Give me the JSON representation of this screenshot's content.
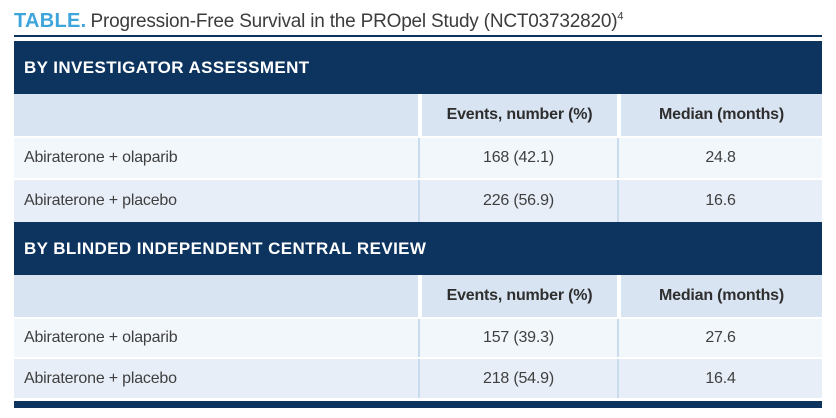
{
  "title": {
    "label": "TABLE.",
    "text": "Progression-Free Survival in the PROpel Study (NCT03732820)",
    "reference": "4"
  },
  "colors": {
    "navy": "#0d345f",
    "accent_blue": "#3da5dc",
    "column_header_bg": "#d9e4f2",
    "row_light": "#f2f7fc",
    "row_shaded": "#e7eef8"
  },
  "table": {
    "sections": [
      {
        "header": "BY INVESTIGATOR ASSESSMENT",
        "columns": [
          "",
          "Events, number (%)",
          "Median (months)"
        ],
        "rows": [
          [
            "Abiraterone + olaparib",
            "168 (42.1)",
            "24.8"
          ],
          [
            "Abiraterone + placebo",
            "226 (56.9)",
            "16.6"
          ]
        ]
      },
      {
        "header": "BY BLINDED INDEPENDENT CENTRAL REVIEW",
        "columns": [
          "",
          "Events, number (%)",
          "Median (months)"
        ],
        "rows": [
          [
            "Abiraterone + olaparib",
            "157 (39.3)",
            "27.6"
          ],
          [
            "Abiraterone + placebo",
            "218 (54.9)",
            "16.4"
          ]
        ]
      }
    ]
  },
  "chart_data": {
    "type": "table",
    "title": "Progression-Free Survival in the PROpel Study (NCT03732820)",
    "sections": [
      {
        "name": "By investigator assessment",
        "columns": [
          "Arm",
          "Events, number (%)",
          "Median (months)"
        ],
        "rows": [
          {
            "arm": "Abiraterone + olaparib",
            "events": "168 (42.1)",
            "median_months": 24.8
          },
          {
            "arm": "Abiraterone + placebo",
            "events": "226 (56.9)",
            "median_months": 16.6
          }
        ]
      },
      {
        "name": "By blinded independent central review",
        "columns": [
          "Arm",
          "Events, number (%)",
          "Median (months)"
        ],
        "rows": [
          {
            "arm": "Abiraterone + olaparib",
            "events": "157 (39.3)",
            "median_months": 27.6
          },
          {
            "arm": "Abiraterone + placebo",
            "events": "218 (54.9)",
            "median_months": 16.4
          }
        ]
      }
    ]
  }
}
